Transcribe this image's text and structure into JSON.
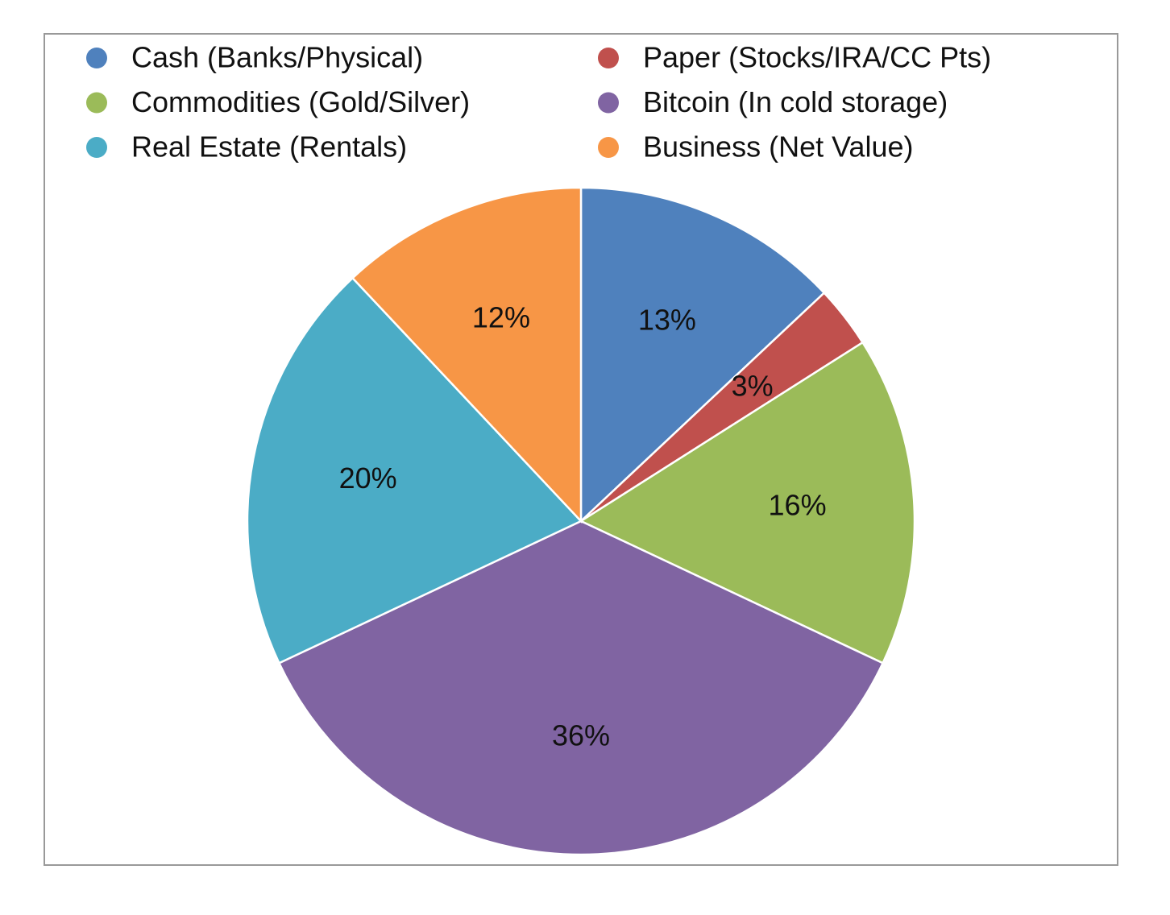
{
  "chart_data": {
    "type": "pie",
    "categories": [
      "Cash (Banks/Physical)",
      "Paper (Stocks/IRA/CC Pts)",
      "Commodities (Gold/Silver)",
      "Bitcoin (In cold storage)",
      "Real Estate (Rentals)",
      "Business (Net Value)"
    ],
    "values": [
      13,
      3,
      16,
      36,
      20,
      12
    ],
    "value_labels": [
      "13%",
      "3%",
      "16%",
      "36%",
      "20%",
      "12%"
    ],
    "colors": [
      "#4f81bd",
      "#c0504d",
      "#9bbb59",
      "#8064a2",
      "#4bacc6",
      "#f79646"
    ],
    "legend": "top"
  }
}
